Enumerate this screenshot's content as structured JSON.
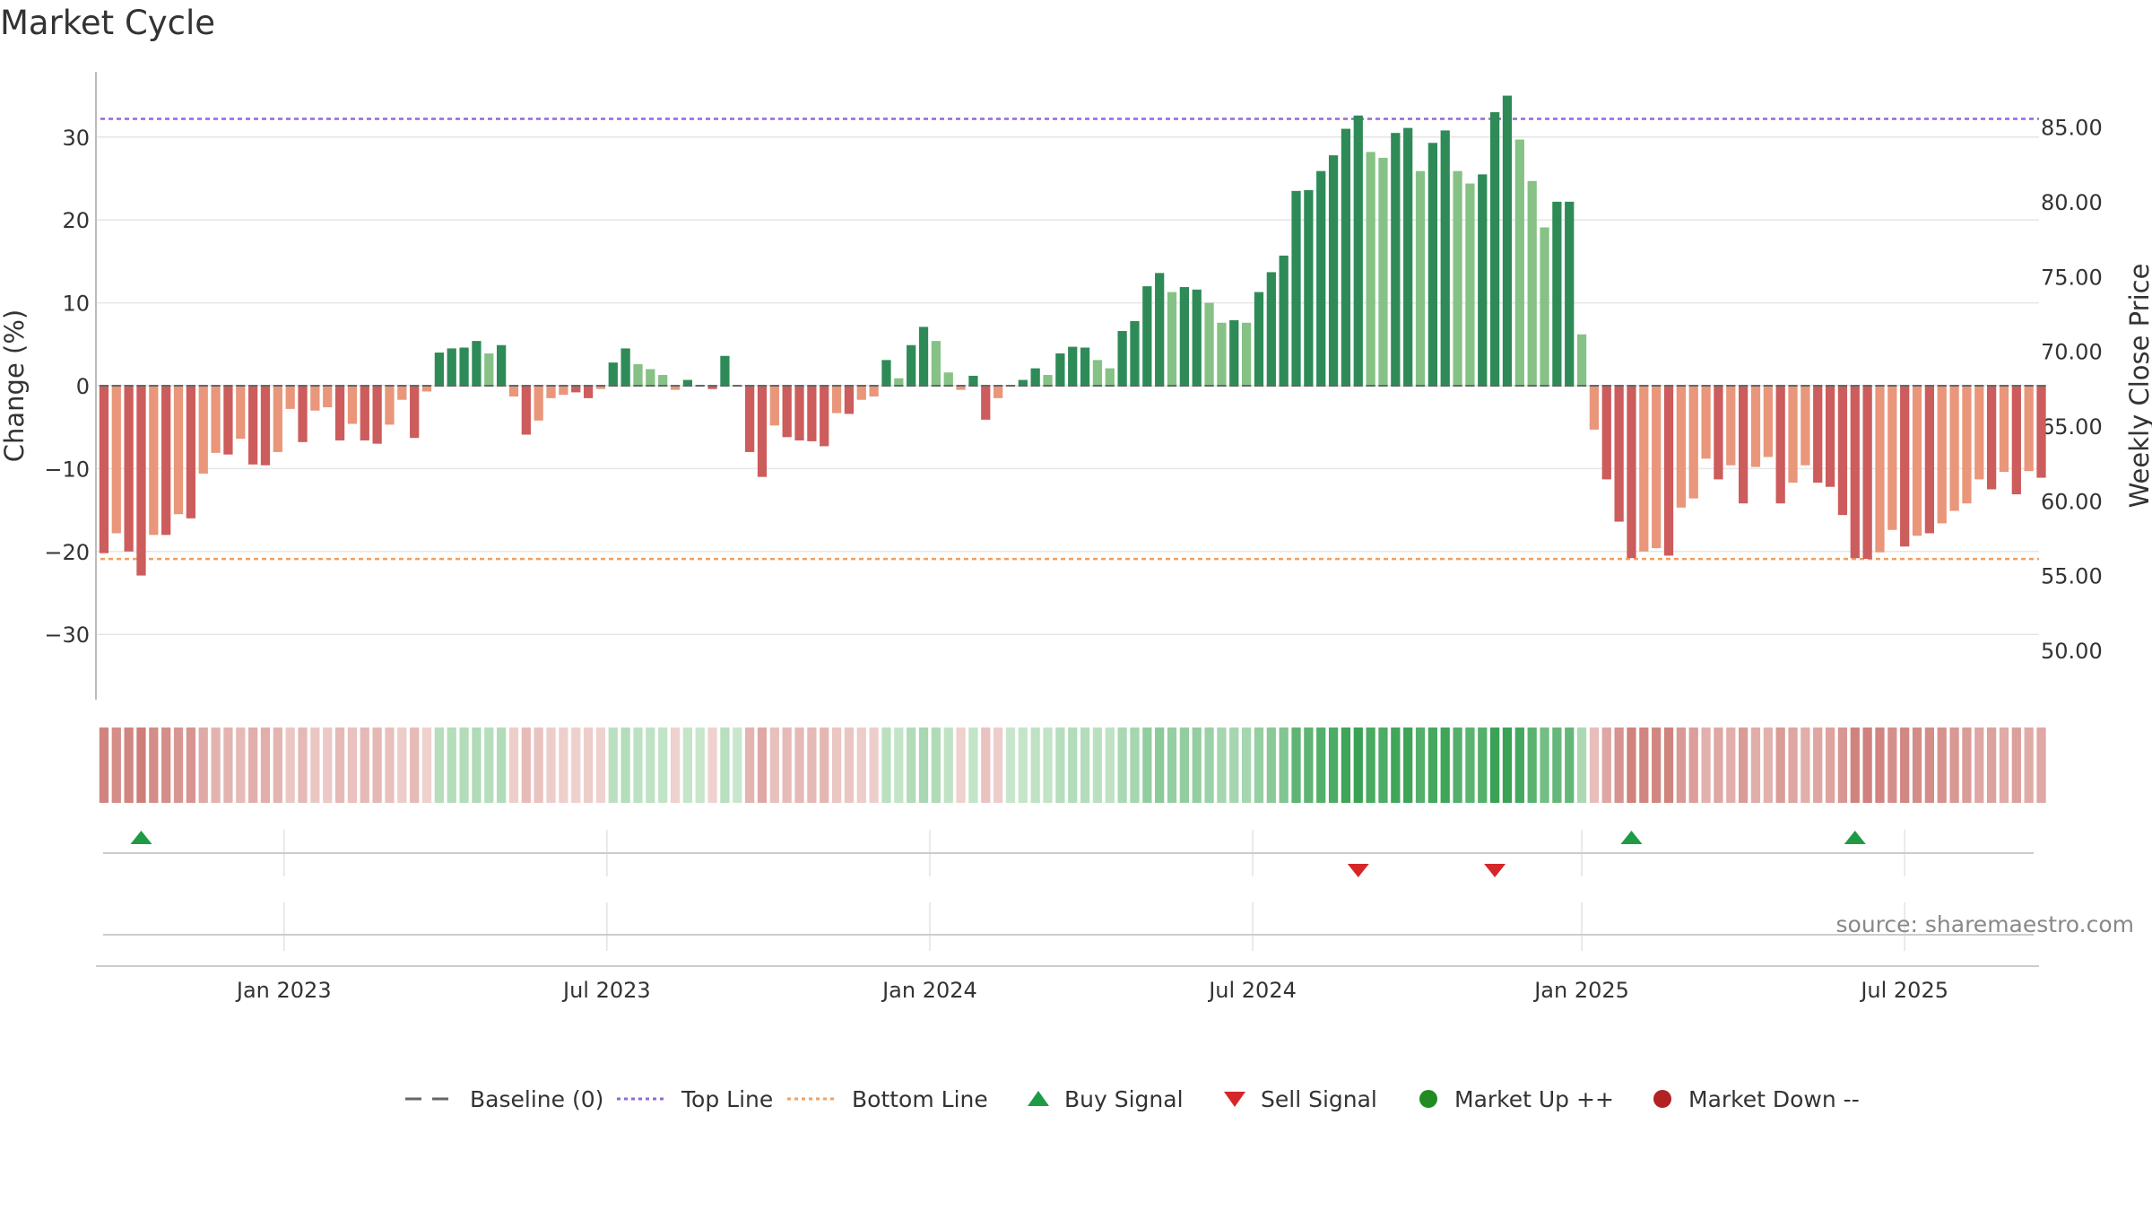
{
  "chart_data": {
    "type": "bar",
    "title": "Market Cycle",
    "ylabel_left": "Change (%)",
    "ylabel_right": "Weekly Close Price",
    "ylim": [
      -38,
      38
    ],
    "yticks": [
      30,
      20,
      10,
      0,
      -10,
      -20,
      -30
    ],
    "ytick_labels": [
      "30",
      "20",
      "10",
      "0",
      "−10",
      "−20",
      "−30"
    ],
    "right_ylim": [
      46.7,
      88.7
    ],
    "right_ticks": [
      85,
      80,
      75,
      70,
      65,
      60,
      55,
      50
    ],
    "right_tick_labels": [
      "85.00",
      "80.00",
      "75.00",
      "70.00",
      "65.00",
      "60.00",
      "55.00",
      "50.00"
    ],
    "top_line": 32.2,
    "bottom_line": -20.9,
    "x_ticks": [
      {
        "week": 14.5,
        "label": "Jan 2023"
      },
      {
        "week": 40.5,
        "label": "Jul 2023"
      },
      {
        "week": 66.5,
        "label": "Jan 2024"
      },
      {
        "week": 92.5,
        "label": "Jul 2024"
      },
      {
        "week": 119,
        "label": "Jan 2025"
      },
      {
        "week": 145,
        "label": "Jul 2025"
      }
    ],
    "values": [
      -20.2,
      -17.8,
      -20,
      -22.9,
      -18,
      -18,
      -15.5,
      -16,
      -10.6,
      -8.1,
      -8.3,
      -6.4,
      -9.5,
      -9.6,
      -8,
      -2.8,
      -6.8,
      -3,
      -2.6,
      -6.6,
      -4.6,
      -6.6,
      -7,
      -4.7,
      -1.7,
      -6.3,
      -0.7,
      4,
      4.5,
      4.6,
      5.4,
      3.9,
      4.9,
      -1.3,
      -5.9,
      -4.2,
      -1.5,
      -1.1,
      -0.8,
      -1.5,
      -0.4,
      2.8,
      4.5,
      2.6,
      2,
      1.3,
      -0.5,
      0.7,
      0.1,
      -0.4,
      3.6,
      0,
      -8,
      -11,
      -4.8,
      -6.2,
      -6.6,
      -6.7,
      -7.3,
      -3.3,
      -3.4,
      -1.7,
      -1.3,
      3.1,
      0.9,
      4.9,
      7.1,
      5.4,
      1.6,
      -0.5,
      1.2,
      -4.1,
      -1.5,
      0,
      0.7,
      2.1,
      1.3,
      3.9,
      4.7,
      4.6,
      3.1,
      2.1,
      6.6,
      7.8,
      12,
      13.6,
      11.3,
      11.9,
      11.6,
      10,
      7.6,
      7.9,
      7.6,
      11.3,
      13.7,
      15.7,
      23.5,
      23.6,
      25.9,
      27.8,
      31,
      32.6,
      28.2,
      27.5,
      30.5,
      31.1,
      25.9,
      29.3,
      30.8,
      25.9,
      24.4,
      25.5,
      33,
      35,
      29.7,
      24.7,
      19.1,
      22.2,
      22.2,
      6.2,
      -5.3,
      -11.3,
      -16.4,
      -20.8,
      -20,
      -19.6,
      -20.5,
      -14.7,
      -13.6,
      -8.8,
      -11.3,
      -9.6,
      -14.2,
      -9.8,
      -8.6,
      -14.2,
      -11.7,
      -9.6,
      -11.7,
      -12.2,
      -15.6,
      -20.8,
      -20.9,
      -20.1,
      -17.4,
      -19.4,
      -18.1,
      -17.8,
      -16.6,
      -15.1,
      -14.2,
      -11.3,
      -12.5,
      -10.4,
      -13.1,
      -10.3,
      -11.1
    ],
    "signals": {
      "buy_weeks": [
        3,
        123,
        141
      ],
      "sell_weeks": [
        101,
        112
      ]
    },
    "legend": [
      {
        "label": "Baseline (0)",
        "kind": "line-dash",
        "color": "#666666"
      },
      {
        "label": "Top Line",
        "kind": "line-dot",
        "color": "#9467d6"
      },
      {
        "label": "Bottom Line",
        "kind": "line-dot",
        "color": "#f0a060"
      },
      {
        "label": "Buy Signal",
        "kind": "triangle-up",
        "color": "#1f9b45"
      },
      {
        "label": "Sell Signal",
        "kind": "triangle-down",
        "color": "#d62728"
      },
      {
        "label": "Market Up ++",
        "kind": "dot",
        "color": "#228b22"
      },
      {
        "label": "Market Down --",
        "kind": "dot",
        "color": "#b22222"
      }
    ],
    "source": "source: sharemaestro.com",
    "colors": {
      "up_strong": "#2e8b57",
      "up_weak": "#86c286",
      "down_strong": "#cd5c5c",
      "down_weak": "#e9967a",
      "top_line": "#9467d6",
      "bottom_line": "#f0a060"
    }
  }
}
